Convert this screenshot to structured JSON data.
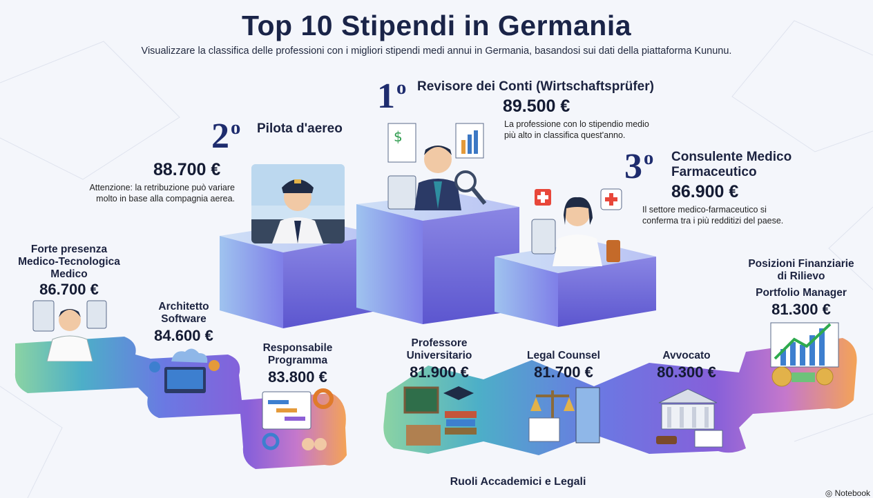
{
  "title": "Top 10 Stipendi in Germania",
  "subtitle": "Visualizzare la classifica delle professioni con i migliori stipendi medi annui in Germania, basandosi sui dati della piattaforma Kununu.",
  "podium": {
    "first": {
      "rank": "1",
      "ordinal": "o",
      "title": "Revisore dei Conti (Wirtschaftsprüfer)",
      "salary": "89.500 €",
      "note_line1": "La professione con lo stipendio medio",
      "note_line2": "più alto in classifica quest'anno."
    },
    "second": {
      "rank": "2",
      "ordinal": "o",
      "title": "Pilota d'aereo",
      "salary": "88.700 €",
      "note_line1": "Attenzione: la retribuzione può variare",
      "note_line2": "molto in base alla compagnia aerea."
    },
    "third": {
      "rank": "3",
      "ordinal": "o",
      "title_line1": "Consulente Medico",
      "title_line2": "Farmaceutico",
      "salary": "86.900 €",
      "note_line1": "Il settore medico-farmaceutico si",
      "note_line2": "conferma tra i più redditizi del paese."
    }
  },
  "path": [
    {
      "title_lines": [
        "Forte presenza",
        "Medico-Tecnologica",
        "Medico"
      ],
      "salary": "86.700 €"
    },
    {
      "title_lines": [
        "Architetto",
        "Software"
      ],
      "salary": "84.600 €"
    },
    {
      "title_lines": [
        "Responsabile",
        "Programma"
      ],
      "salary": "83.800 €"
    },
    {
      "title_lines": [
        "Professore",
        "Universitario"
      ],
      "salary": "81.900 €"
    },
    {
      "title_lines": [
        "Legal Counsel"
      ],
      "salary": "81.700 €"
    },
    {
      "title_lines": [
        "Avvocato"
      ],
      "salary": "80.300 €"
    },
    {
      "title_lines": [
        "Posizioni Finanziarie",
        "di Rilievo",
        "Portfolio Manager"
      ],
      "salary": "81.300 €"
    }
  ],
  "section_label": "Ruoli Accademici e Legali",
  "footer": "Notebook",
  "colors": {
    "navy": "#1e2c6e",
    "teal": "#3a9fb5",
    "purple": "#6a4fd0",
    "orange": "#f2a24a"
  }
}
